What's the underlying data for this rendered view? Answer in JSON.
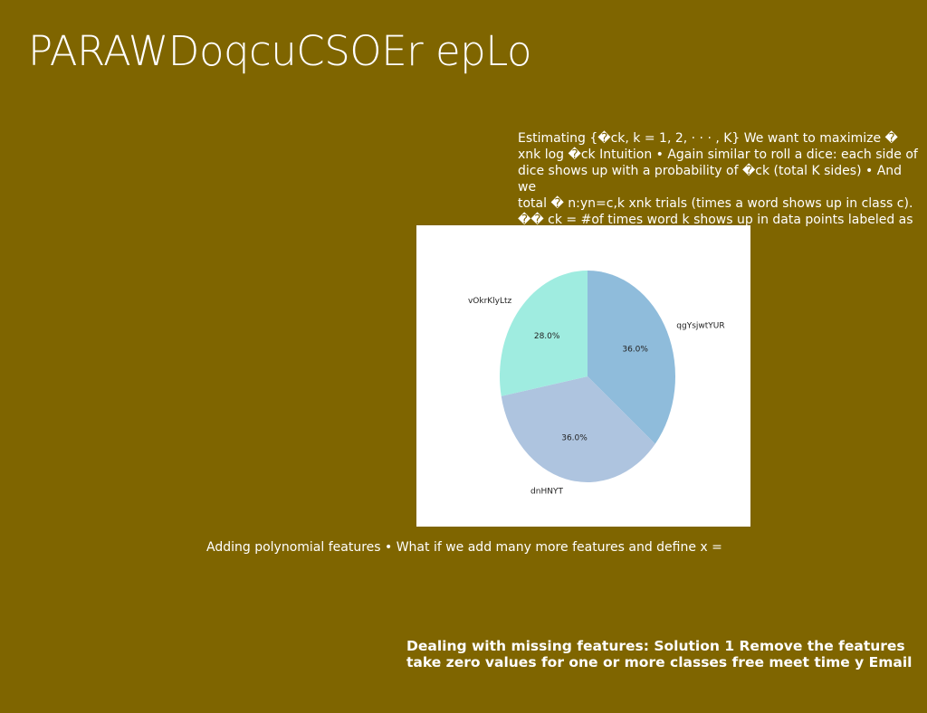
{
  "slide": {
    "title": "PARAWDoqcuCSOEr epLo",
    "body_lines": [
      "Estimating {�ck, k = 1, 2, · · · , K} We want to maximize �",
      "xnk log �ck Intuition • Again similar to roll a dice: each side of",
      "dice shows up with a probability of �ck (total K sides) • And we",
      "total � n:yn=c,k xnk trials (times a word shows up in class c).",
      "�� ck = #of times word k shows up in data points labeled as c"
    ],
    "caption": "Adding polynomial features • What if we add many more features and define x =",
    "footer_lines": [
      "Dealing with missing features: Solution 1 Remove the features",
      "take zero values for one or more classes free meet time y Email"
    ]
  },
  "chart_data": {
    "type": "pie",
    "title": "",
    "categories": [
      "qgYsjwtYUR",
      "dnHNYT",
      "vOkrKlyLtz"
    ],
    "values": [
      36.0,
      36.0,
      28.0
    ],
    "value_labels": [
      "36.0%",
      "36.0%",
      "28.0%"
    ],
    "colors": [
      "#8fbcdb",
      "#aec4df",
      "#9fece0"
    ],
    "start_angle_deg": 90,
    "direction": "clockwise",
    "legend": "none"
  }
}
